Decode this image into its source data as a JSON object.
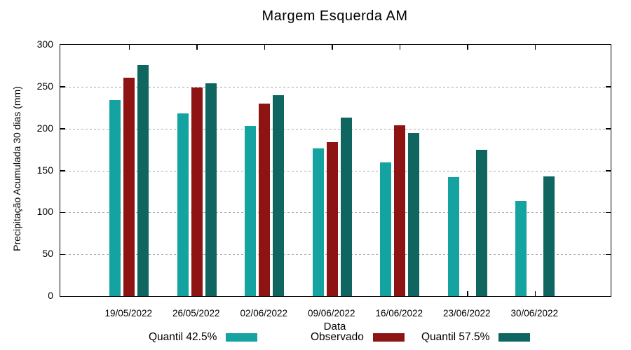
{
  "chart_data": {
    "type": "bar",
    "title": "Margem Esquerda AM",
    "xlabel": "Data",
    "ylabel": "Precipitação Acumulada 30 dias (mm)",
    "ylim": [
      0,
      300
    ],
    "yticks": [
      0,
      50,
      100,
      150,
      200,
      250,
      300
    ],
    "grid": "horizontal-dotted",
    "legend_position": "bottom",
    "categories": [
      "19/05/2022",
      "26/05/2022",
      "02/06/2022",
      "09/06/2022",
      "16/06/2022",
      "23/06/2022",
      "30/06/2022"
    ],
    "series": [
      {
        "name": "Quantil 42.5%",
        "color": "#14A3A0",
        "values": [
          234,
          218,
          203,
          176,
          160,
          142,
          114
        ]
      },
      {
        "name": "Observado",
        "color": "#8E1414",
        "values": [
          261,
          249,
          230,
          184,
          204,
          null,
          null
        ]
      },
      {
        "name": "Quantil 57.5%",
        "color": "#0F6660",
        "values": [
          276,
          254,
          240,
          213,
          195,
          175,
          143
        ]
      }
    ]
  },
  "colors": {
    "background": "#ffffff",
    "axis": "#000000",
    "grid": "#a9a9a9",
    "text": "#000000"
  }
}
